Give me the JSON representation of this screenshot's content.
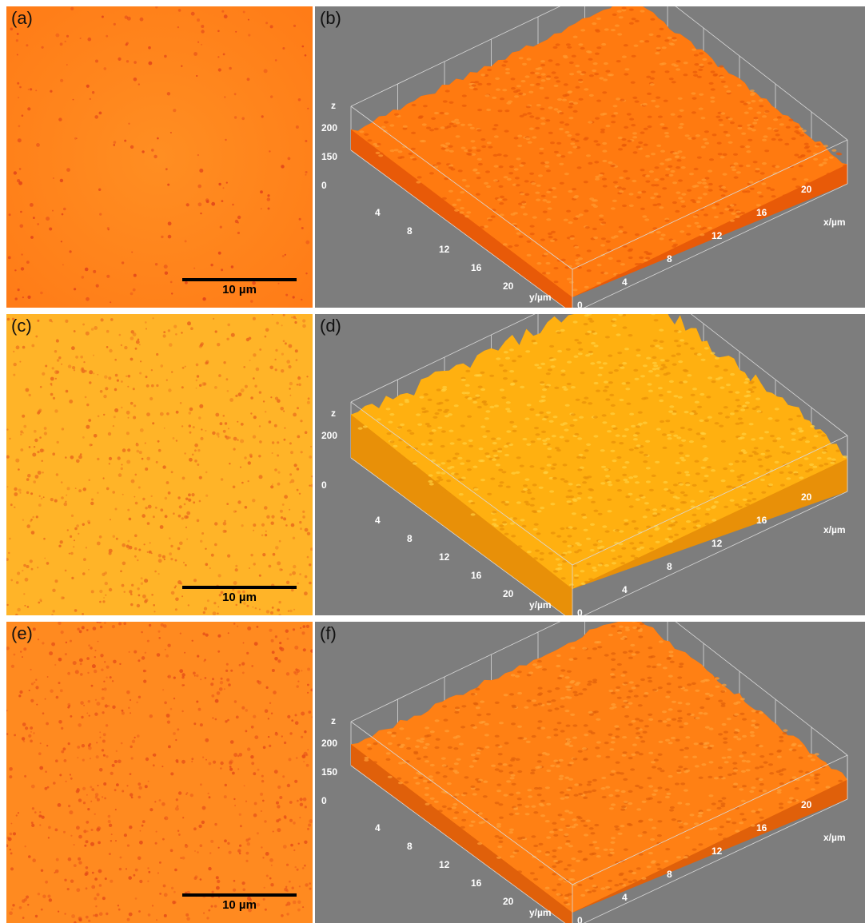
{
  "panels": [
    {
      "label": "(a)",
      "type": "micrograph",
      "colors": [
        "#ff8a1e",
        "#ff6a10",
        "#e0401a"
      ],
      "scale_bar": "10 µm"
    },
    {
      "label": "(b)",
      "type": "surface-3d",
      "colors": [
        "#ff7a10",
        "#ff9a30",
        "#e85a08"
      ],
      "axes": {
        "z_label": "z",
        "z_ticks": [
          "200",
          "150",
          "0"
        ],
        "y_label": "y/µm",
        "y_ticks": [
          "4",
          "8",
          "12",
          "16",
          "20"
        ],
        "x_label": "x/µm",
        "x_ticks": [
          "0",
          "4",
          "8",
          "12",
          "16",
          "20"
        ]
      }
    },
    {
      "label": "(c)",
      "type": "micrograph",
      "colors": [
        "#ffb224",
        "#ff9a1a",
        "#e8661c"
      ],
      "scale_bar": "10 µm"
    },
    {
      "label": "(d)",
      "type": "surface-3d",
      "colors": [
        "#ffb010",
        "#ffd040",
        "#e89008"
      ],
      "axes": {
        "z_label": "z",
        "z_ticks": [
          "200",
          "0"
        ],
        "y_label": "y/µm",
        "y_ticks": [
          "4",
          "8",
          "12",
          "16",
          "20"
        ],
        "x_label": "x/µm",
        "x_ticks": [
          "0",
          "4",
          "8",
          "12",
          "16",
          "20"
        ]
      }
    },
    {
      "label": "(e)",
      "type": "micrograph",
      "colors": [
        "#ff8c22",
        "#ff7214",
        "#e44a18"
      ],
      "scale_bar": "10 µm"
    },
    {
      "label": "(f)",
      "type": "surface-3d",
      "colors": [
        "#ff8014",
        "#ffa036",
        "#e0600a"
      ],
      "axes": {
        "z_label": "z",
        "z_ticks": [
          "200",
          "150",
          "0"
        ],
        "y_label": "y/µm",
        "y_ticks": [
          "4",
          "8",
          "12",
          "16",
          "20"
        ],
        "x_label": "x/µm",
        "x_ticks": [
          "0",
          "4",
          "8",
          "12",
          "16",
          "20"
        ]
      }
    }
  ]
}
